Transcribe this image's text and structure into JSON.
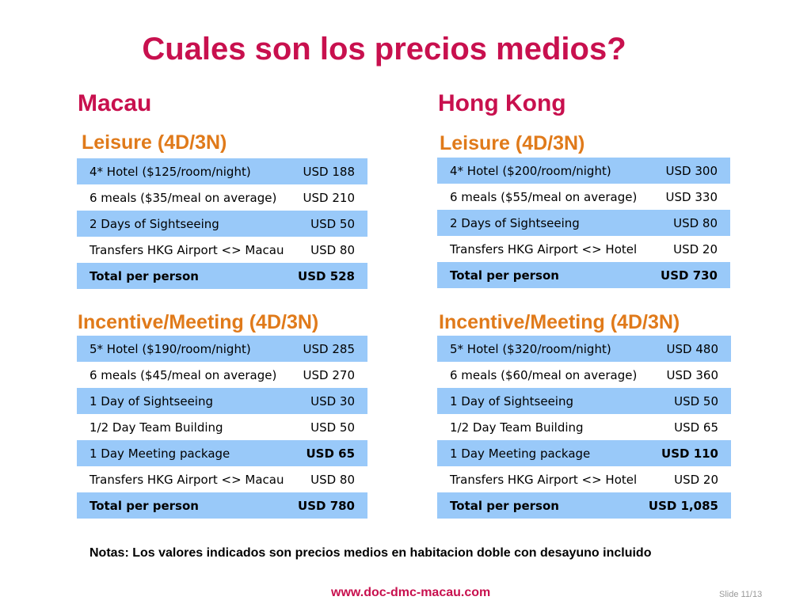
{
  "title": "Cuales son los precios medios?",
  "macau": {
    "name": "Macau",
    "leisure": {
      "heading": "Leisure (4D/3N)",
      "rows": [
        {
          "item": "4* Hotel ($125/room/night)",
          "price": "USD 188"
        },
        {
          "item": "6 meals ($35/meal on average)",
          "price": "USD 210"
        },
        {
          "item": "2 Days of Sightseeing",
          "price": "USD 50"
        },
        {
          "item": "Transfers HKG Airport <> Macau",
          "price": "USD 80"
        },
        {
          "item": "Total per person",
          "price": "USD 528"
        }
      ]
    },
    "incentive": {
      "heading": "Incentive/Meeting (4D/3N)",
      "rows": [
        {
          "item": "5* Hotel ($190/room/night)",
          "price": "USD 285"
        },
        {
          "item": "6 meals ($45/meal on average)",
          "price": "USD 270"
        },
        {
          "item": "1 Day of Sightseeing",
          "price": "USD 30"
        },
        {
          "item": "1/2 Day Team Building",
          "price": "USD 50"
        },
        {
          "item": "1 Day Meeting package",
          "price": "USD 65"
        },
        {
          "item": "Transfers HKG Airport <> Macau",
          "price": "USD 80"
        },
        {
          "item": "Total per person",
          "price": "USD 780"
        }
      ]
    }
  },
  "hongkong": {
    "name": "Hong Kong",
    "leisure": {
      "heading": "Leisure (4D/3N)",
      "rows": [
        {
          "item": "4* Hotel ($200/room/night)",
          "price": "USD 300"
        },
        {
          "item": "6 meals ($55/meal on average)",
          "price": "USD 330"
        },
        {
          "item": "2 Days of Sightseeing",
          "price": "USD 80"
        },
        {
          "item": "Transfers HKG Airport <> Hotel",
          "price": "USD 20"
        },
        {
          "item": "Total per person",
          "price": "USD 730"
        }
      ]
    },
    "incentive": {
      "heading": "Incentive/Meeting (4D/3N)",
      "rows": [
        {
          "item": "5* Hotel ($320/room/night)",
          "price": "USD 480"
        },
        {
          "item": "6 meals ($60/meal on average)",
          "price": "USD 360"
        },
        {
          "item": "1 Day of Sightseeing",
          "price": "USD 50"
        },
        {
          "item": "1/2 Day Team Building",
          "price": "USD 65"
        },
        {
          "item": "1 Day Meeting package",
          "price": "USD 110"
        },
        {
          "item": "Transfers HKG Airport <> Hotel",
          "price": "USD 20"
        },
        {
          "item": "Total per person",
          "price": "USD 1,085"
        }
      ]
    }
  },
  "notes": "Notas:  Los valores indicados son precios medios en habitacion doble con desayuno incluido",
  "website": "www.doc-dmc-macau.com",
  "slide_number": "Slide 11/13",
  "colors": {
    "title": "#c8104e",
    "section": "#e07a1a",
    "row_blue": "#99c9f9"
  }
}
